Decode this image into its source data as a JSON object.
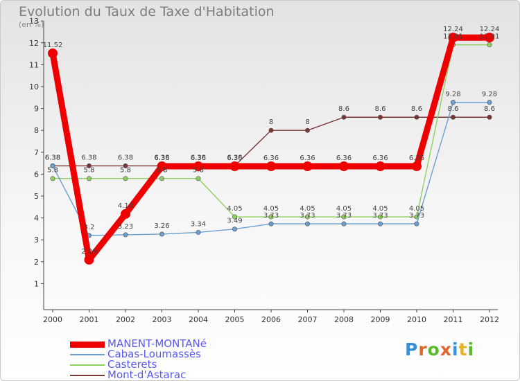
{
  "title": "Evolution du Taux de Taxe d'Habitation",
  "subtitle": "(en %)",
  "brand": {
    "text": "Proxiti",
    "letter_colors": [
      "#3a8fd6",
      "#e0662a",
      "#5cb82f",
      "#e0662a",
      "#3a8fd6",
      "#e6b12a",
      "#5cb82f"
    ]
  },
  "chart_data": {
    "type": "line",
    "x": [
      "2000",
      "2001",
      "2002",
      "2003",
      "2004",
      "2005",
      "2006",
      "2007",
      "2008",
      "2009",
      "2010",
      "2011",
      "2012"
    ],
    "ylim": [
      0,
      13
    ],
    "yticks": [
      "1",
      "2",
      "3",
      "4",
      "5",
      "6",
      "7",
      "8",
      "9",
      "10",
      "11",
      "12",
      "13"
    ],
    "grid": false,
    "legend_position": "bottom-left",
    "series": [
      {
        "name": "MANENT-MONTANé",
        "color": "#ee0000",
        "values": [
          11.52,
          2.09,
          4.18,
          6.36,
          6.36,
          6.36,
          6.36,
          6.36,
          6.36,
          6.36,
          6.36,
          12.24,
          12.24
        ],
        "labels": [
          "11.52",
          "2.09",
          "4.18",
          "6.36",
          "6.36",
          "6.36",
          "6.36",
          "6.36",
          "6.36",
          "6.36",
          "6.36",
          "12.24",
          "12.24"
        ]
      },
      {
        "name": "Cabas-Loumassès",
        "color": "#6a9fd0",
        "values": [
          6.38,
          3.2,
          3.23,
          3.26,
          3.34,
          3.49,
          3.73,
          3.73,
          3.73,
          3.73,
          3.73,
          9.28,
          9.28
        ],
        "labels": [
          "6.38",
          "3.2",
          "3.23",
          "3.26",
          "3.34",
          "3.49",
          "3.73",
          "3.73",
          "3.73",
          "3.73",
          "3.73",
          "9.28",
          "9.28"
        ]
      },
      {
        "name": "Casterets",
        "color": "#90d060",
        "values": [
          5.8,
          5.8,
          5.8,
          5.8,
          5.8,
          4.05,
          4.05,
          4.05,
          4.05,
          4.05,
          4.05,
          11.91,
          11.91
        ],
        "labels": [
          "5.8",
          "5.8",
          "5.8",
          "5.8",
          "5.8",
          "4.05",
          "4.05",
          "4.05",
          "4.05",
          "4.05",
          "4.05",
          "11.91",
          "11.91"
        ]
      },
      {
        "name": "Mont-d'Astarac",
        "color": "#7a3535",
        "values": [
          6.38,
          6.38,
          6.38,
          6.38,
          6.38,
          6.38,
          8,
          8,
          8.6,
          8.6,
          8.6,
          8.6,
          8.6
        ],
        "labels": [
          "6.38",
          "6.38",
          "6.38",
          "6.38",
          "6.38",
          "6.38",
          "8",
          "8",
          "8.6",
          "8.6",
          "8.6",
          "8.6",
          "8.6"
        ]
      }
    ]
  }
}
